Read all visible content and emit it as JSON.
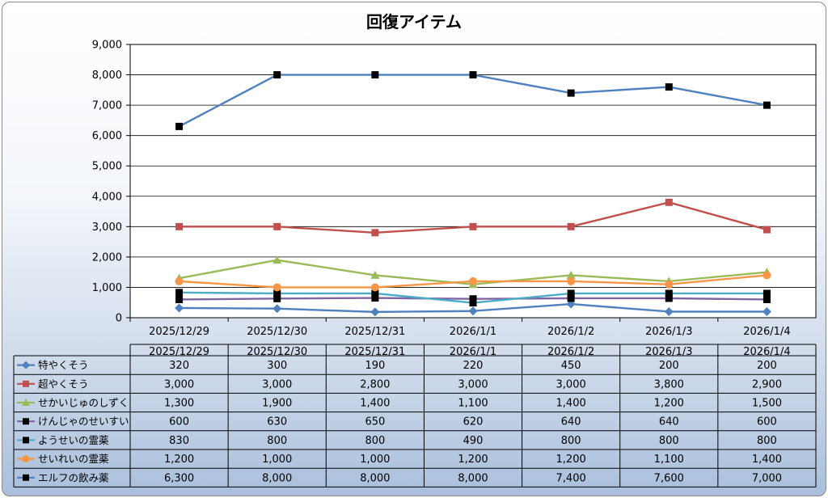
{
  "chart_data": {
    "type": "line",
    "title": "回復アイテム",
    "ylim": [
      0,
      9000
    ],
    "y_ticks": [
      "0",
      "1,000",
      "2,000",
      "3,000",
      "4,000",
      "5,000",
      "6,000",
      "7,000",
      "8,000",
      "9,000"
    ],
    "y_tick_values": [
      0,
      1000,
      2000,
      3000,
      4000,
      5000,
      6000,
      7000,
      8000,
      9000
    ],
    "categories": [
      "2025/12/29",
      "2025/12/30",
      "2025/12/31",
      "2026/1/1",
      "2026/1/2",
      "2026/1/3",
      "2026/1/4"
    ],
    "grid": true,
    "legend_placement": "data-table",
    "series": [
      {
        "name": "特やくそう",
        "color": "#4f81bd",
        "marker": "diamond",
        "values": [
          320,
          300,
          190,
          220,
          450,
          200,
          200
        ],
        "labels": [
          "320",
          "300",
          "190",
          "220",
          "450",
          "200",
          "200"
        ]
      },
      {
        "name": "超やくそう",
        "color": "#c0504d",
        "marker": "square",
        "values": [
          3000,
          3000,
          2800,
          3000,
          3000,
          3800,
          2900
        ],
        "labels": [
          "3,000",
          "3,000",
          "2,800",
          "3,000",
          "3,000",
          "3,800",
          "2,900"
        ]
      },
      {
        "name": "せかいじゅのしずく",
        "color": "#9bbb59",
        "marker": "triangle",
        "values": [
          1300,
          1900,
          1400,
          1100,
          1400,
          1200,
          1500
        ],
        "labels": [
          "1,300",
          "1,900",
          "1,400",
          "1,100",
          "1,400",
          "1,200",
          "1,500"
        ]
      },
      {
        "name": "けんじゃのせいすい",
        "color": "#8064a2",
        "marker": "blacksquare",
        "values": [
          600,
          630,
          650,
          620,
          640,
          640,
          600
        ],
        "labels": [
          "600",
          "630",
          "650",
          "620",
          "640",
          "640",
          "600"
        ]
      },
      {
        "name": "ようせいの霊薬",
        "color": "#4bacc6",
        "marker": "blacksquare",
        "values": [
          830,
          800,
          800,
          490,
          800,
          800,
          800
        ],
        "labels": [
          "830",
          "800",
          "800",
          "490",
          "800",
          "800",
          "800"
        ]
      },
      {
        "name": "せいれいの霊薬",
        "color": "#f79646",
        "marker": "circle",
        "values": [
          1200,
          1000,
          1000,
          1200,
          1200,
          1100,
          1400
        ],
        "labels": [
          "1,200",
          "1,000",
          "1,000",
          "1,200",
          "1,200",
          "1,100",
          "1,400"
        ]
      },
      {
        "name": "エルフの飲み薬",
        "color": "#4f81bd",
        "marker": "blacksquare",
        "values": [
          6300,
          8000,
          8000,
          8000,
          7400,
          7600,
          7000
        ],
        "labels": [
          "6,300",
          "8,000",
          "8,000",
          "8,000",
          "7,400",
          "7,600",
          "7,000"
        ]
      }
    ]
  }
}
